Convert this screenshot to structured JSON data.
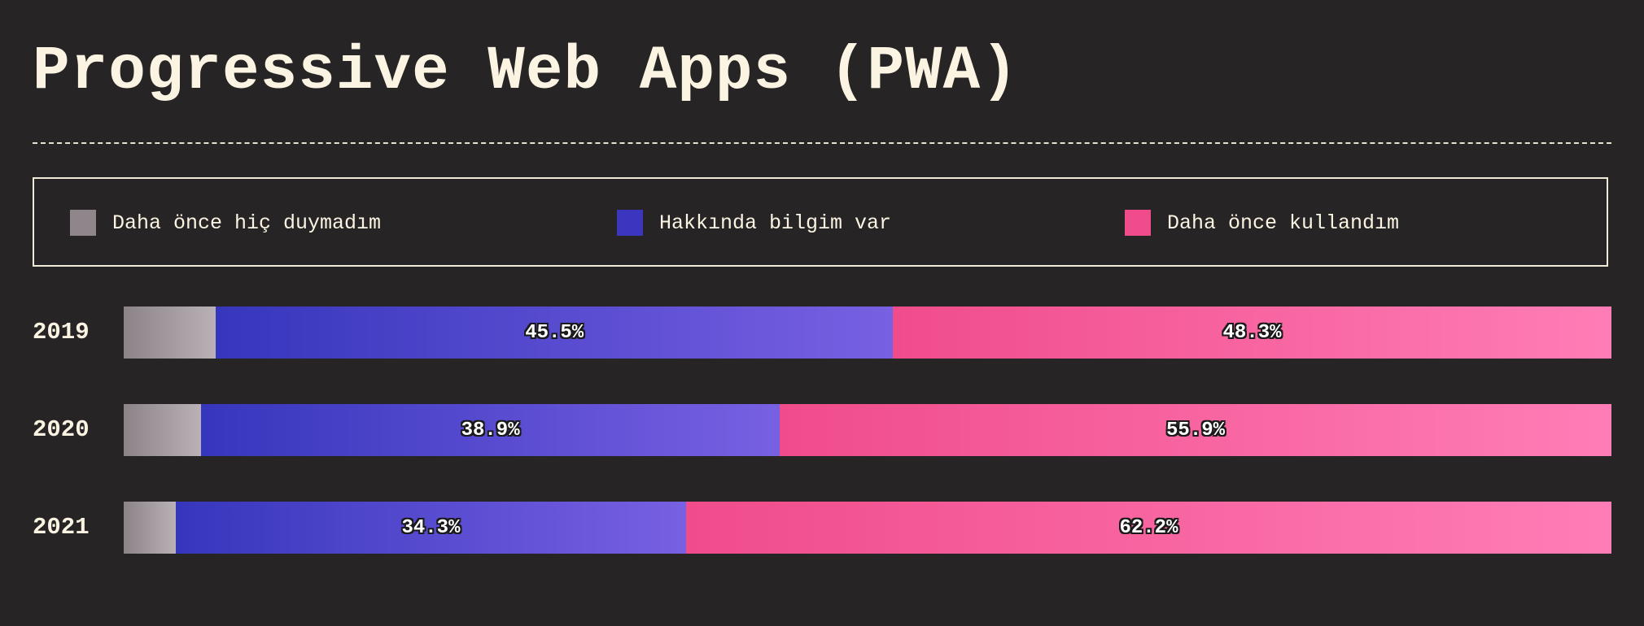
{
  "chart_data": {
    "type": "bar",
    "orientation": "horizontal",
    "stacked": true,
    "title": "Progressive Web Apps (PWA)",
    "categories": [
      "2019",
      "2020",
      "2021"
    ],
    "series": [
      {
        "name": "Daha önce hiç duymadım",
        "values": [
          6.2,
          5.2,
          3.5
        ],
        "value_labels": [
          "",
          "",
          ""
        ],
        "color": "#8e868b"
      },
      {
        "name": "Hakkında bilgim var",
        "values": [
          45.5,
          38.9,
          34.3
        ],
        "value_labels": [
          "45.5%",
          "38.9%",
          "34.3%"
        ],
        "color": "#3c36bf"
      },
      {
        "name": "Daha önce kullandım",
        "values": [
          48.3,
          55.9,
          62.2
        ],
        "value_labels": [
          "48.3%",
          "55.9%",
          "62.2%"
        ],
        "color": "#f04c8b"
      }
    ],
    "xlim": [
      0,
      100
    ],
    "grid": false,
    "legend_position": "top"
  },
  "colors": {
    "background": "#272426",
    "text": "#fbf4e2"
  }
}
